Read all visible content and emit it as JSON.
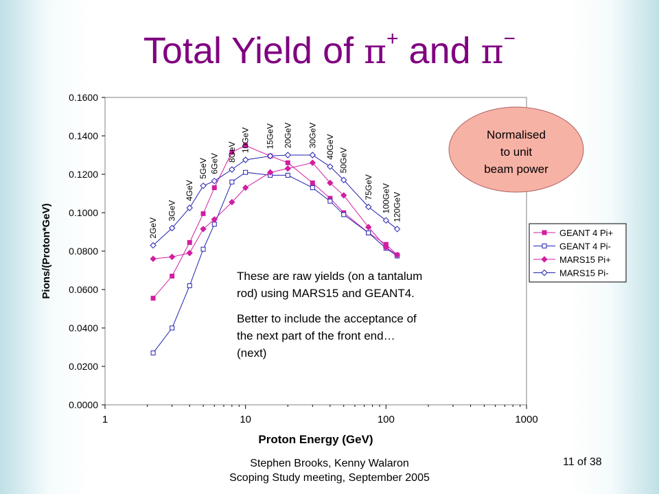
{
  "slide": {
    "title": {
      "prefix": "Total Yield of ",
      "pi": "π",
      "plus": "+",
      "and": " and ",
      "minus": "−"
    },
    "footer_line1": "Stephen Brooks, Kenny Walaron",
    "footer_line2": "Scoping Study meeting, September 2005",
    "page_number": "11 of 38"
  },
  "chart_data": {
    "type": "line",
    "xlabel": "Proton Energy (GeV)",
    "ylabel": "Pions/(Proton*GeV)",
    "xscale": "log",
    "xlim": [
      1,
      1000
    ],
    "ylim": [
      0,
      0.16
    ],
    "xticks": [
      1,
      10,
      100,
      1000
    ],
    "xtick_labels": [
      "1",
      "10",
      "100",
      "1000"
    ],
    "yticks": [
      0,
      0.02,
      0.04,
      0.06,
      0.08,
      0.1,
      0.12,
      0.14,
      0.16
    ],
    "ytick_labels": [
      "0.0000",
      "0.0200",
      "0.0400",
      "0.0600",
      "0.0800",
      "0.1000",
      "0.1200",
      "0.1400",
      "0.1600"
    ],
    "x": [
      2.2,
      3,
      4,
      5,
      6,
      8,
      10,
      15,
      20,
      30,
      40,
      50,
      75,
      100,
      120
    ],
    "energy_labels": [
      "2GeV",
      "3GeV",
      "4GeV",
      "5GeV",
      "6GeV",
      "8GeV",
      "10GeV",
      "15GeV",
      "20GeV",
      "30GeV",
      "40GeV",
      "50GeV",
      "75GeV",
      "100GeV",
      "120GeV"
    ],
    "series": [
      {
        "name": "GEANT 4 Pi+",
        "color": "#d11fa0",
        "marker": "square-filled",
        "values": [
          0.0555,
          0.067,
          0.0845,
          0.0995,
          0.113,
          0.1315,
          0.135,
          0.1295,
          0.126,
          0.1155,
          0.1075,
          0.1,
          0.0895,
          0.0835,
          0.078
        ]
      },
      {
        "name": "GEANT 4 Pi-",
        "color": "#2020b0",
        "marker": "square-open",
        "values": [
          0.027,
          0.04,
          0.062,
          0.081,
          0.094,
          0.116,
          0.121,
          0.1195,
          0.1195,
          0.113,
          0.106,
          0.099,
          0.0895,
          0.0815,
          0.0775
        ]
      },
      {
        "name": "MARS15 Pi+",
        "color": "#d11fa0",
        "marker": "diamond-filled",
        "values": [
          0.076,
          0.077,
          0.079,
          0.0915,
          0.0965,
          0.1055,
          0.113,
          0.121,
          0.123,
          0.126,
          0.1155,
          0.109,
          0.0925,
          0.082,
          0.078
        ]
      },
      {
        "name": "MARS15 Pi-",
        "color": "#2020b0",
        "marker": "diamond-open",
        "values": [
          0.083,
          0.092,
          0.1025,
          0.114,
          0.1165,
          0.1225,
          0.1275,
          0.1295,
          0.13,
          0.13,
          0.124,
          0.117,
          0.103,
          0.096,
          0.0915
        ]
      }
    ],
    "legend_position": "right",
    "annotation_ellipse": [
      "Normalised",
      "to unit",
      "beam power"
    ],
    "annotation_text": [
      "These are raw yields (on a tantalum",
      "rod) using MARS15 and GEANT4.",
      "",
      "Better to include the acceptance of",
      "the next part of the front end…",
      "(next)"
    ],
    "colors": {
      "plot_border": "#808080",
      "ellipse_fill": "#f7b2a6",
      "ellipse_stroke": "#b06060"
    }
  }
}
